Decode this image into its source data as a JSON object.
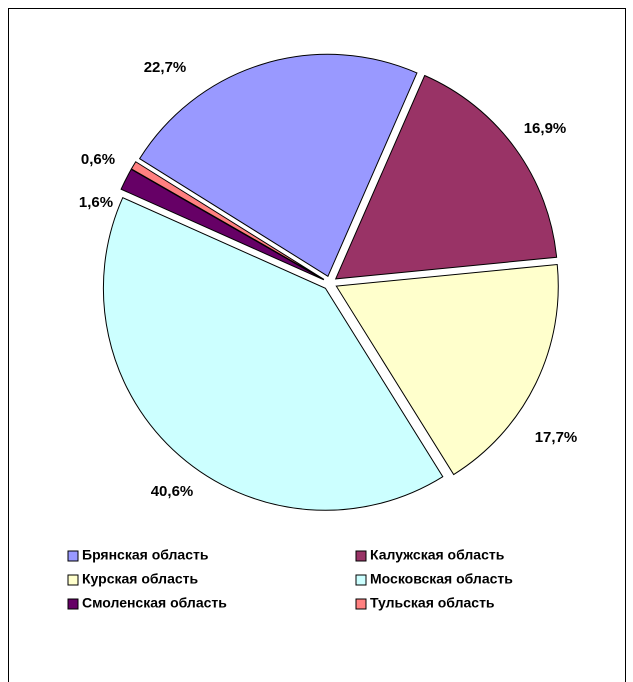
{
  "chart_data": {
    "type": "pie",
    "categories": [
      "Брянская область",
      "Калужская область",
      "Курская область",
      "Московская область",
      "Смоленская область",
      "Тульская область"
    ],
    "values": [
      22.7,
      16.9,
      17.7,
      40.6,
      1.6,
      0.6
    ],
    "value_labels": [
      "22,7%",
      "16,9%",
      "17,7%",
      "40,6%",
      "1,6%",
      "0,6%"
    ],
    "colors": [
      "#9999ff",
      "#993366",
      "#ffffcc",
      "#ccffff",
      "#660066",
      "#ff8080"
    ],
    "legend": "bottom"
  }
}
